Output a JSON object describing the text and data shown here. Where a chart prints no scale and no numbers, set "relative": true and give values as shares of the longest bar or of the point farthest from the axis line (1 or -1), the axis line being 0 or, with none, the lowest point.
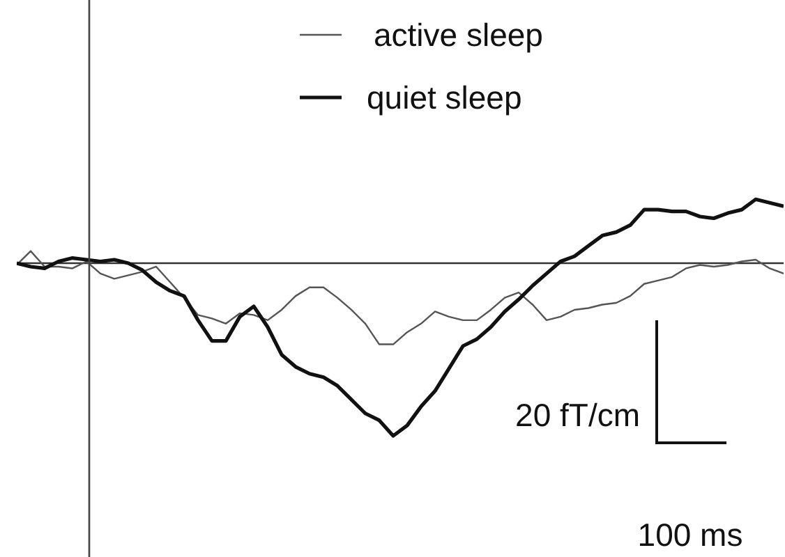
{
  "chart_data": {
    "type": "line",
    "relative": true,
    "legend": "top",
    "marker": "none",
    "line_style": "solid",
    "categories": [
      null,
      null,
      null,
      null,
      null,
      null,
      null,
      null,
      null,
      null,
      null,
      null,
      null,
      null,
      null,
      null,
      null,
      null,
      null,
      null,
      null,
      null,
      null,
      null,
      null,
      null,
      null,
      null,
      null,
      null,
      null,
      null,
      null,
      null,
      null,
      null,
      null,
      null,
      null,
      null,
      null,
      null,
      null,
      null,
      null,
      null,
      null,
      null,
      null,
      null,
      null,
      null,
      null,
      null,
      null,
      null
    ],
    "series": [
      {
        "name": "active sleep",
        "color": "#555555",
        "values": [
          -0.01,
          0.07,
          -0.02,
          -0.02,
          -0.03,
          0.01,
          -0.06,
          -0.09,
          -0.07,
          -0.05,
          -0.02,
          -0.11,
          -0.2,
          -0.3,
          -0.32,
          -0.35,
          -0.29,
          -0.3,
          -0.33,
          -0.27,
          -0.19,
          -0.14,
          -0.14,
          -0.2,
          -0.27,
          -0.35,
          -0.47,
          -0.47,
          -0.4,
          -0.35,
          -0.28,
          -0.31,
          -0.33,
          -0.33,
          -0.27,
          -0.2,
          -0.17,
          -0.24,
          -0.33,
          -0.31,
          -0.27,
          -0.26,
          -0.24,
          -0.23,
          -0.19,
          -0.12,
          -0.1,
          -0.08,
          -0.03,
          -0.01,
          -0.02,
          -0.01,
          0.01,
          0.02,
          -0.03,
          -0.06
        ]
      },
      {
        "name": "quiet sleep",
        "color": "#111111",
        "values": [
          0,
          -0.02,
          -0.03,
          0.01,
          0.03,
          0.02,
          0.01,
          0.02,
          0,
          -0.04,
          -0.11,
          -0.16,
          -0.19,
          -0.33,
          -0.45,
          -0.45,
          -0.31,
          -0.25,
          -0.37,
          -0.53,
          -0.6,
          -0.64,
          -0.66,
          -0.71,
          -0.79,
          -0.87,
          -0.91,
          -1,
          -0.94,
          -0.83,
          -0.74,
          -0.61,
          -0.48,
          -0.44,
          -0.37,
          -0.28,
          -0.21,
          -0.13,
          -0.06,
          0.01,
          0.04,
          0.1,
          0.16,
          0.18,
          0.22,
          0.31,
          0.31,
          0.3,
          0.3,
          0.27,
          0.26,
          0.29,
          0.31,
          0.37,
          0.35,
          0.33
        ]
      }
    ],
    "annotations": [
      "20 fT/cm",
      "100 ms"
    ]
  }
}
